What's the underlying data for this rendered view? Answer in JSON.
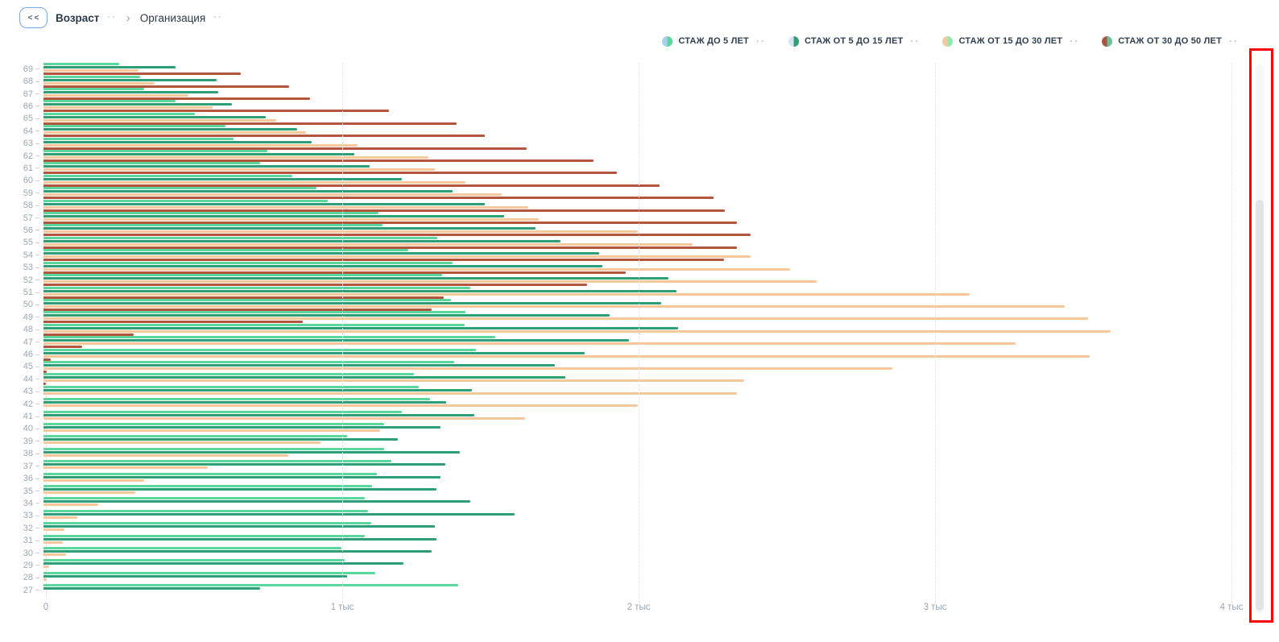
{
  "header": {
    "back_button_label": "<<",
    "breadcrumb": [
      {
        "label": "Возраст",
        "active": true
      },
      {
        "label": "Организация",
        "active": false
      }
    ],
    "dots": "··",
    "separator": "›"
  },
  "legend": {
    "items": [
      {
        "label": "СТАЖ ДО 5 ЛЕТ",
        "swatch_left": "#a9cfec",
        "swatch_right": "#5bd69c",
        "dots": "··"
      },
      {
        "label": "СТАЖ ОТ 5 ДО 15 ЛЕТ",
        "swatch_left": "#d6e5f4",
        "swatch_right": "#2e9e77",
        "dots": "··"
      },
      {
        "label": "СТАЖ ОТ 15 ДО 30 ЛЕТ",
        "swatch_left": "#f5c89c",
        "swatch_right": "#8fe9b2",
        "dots": "··"
      },
      {
        "label": "СТАЖ ОТ 30 ДО 50 ЛЕТ",
        "swatch_left": "#a8553f",
        "swatch_right": "#68c09c",
        "dots": "··"
      }
    ]
  },
  "chart_data": {
    "type": "bar",
    "orientation": "horizontal",
    "title": "",
    "xlabel": "",
    "ylabel": "Возраст",
    "xlim": [
      0,
      4000
    ],
    "grid": "vertical-dashed",
    "legend_position": "top-right",
    "x_ticks": [
      "0",
      "1 тыс",
      "2 тыс",
      "3 тыс",
      "4 тыс"
    ],
    "x_tick_values": [
      0,
      1000,
      2000,
      3000,
      4000
    ],
    "categories": [
      69,
      68,
      67,
      66,
      65,
      64,
      63,
      62,
      61,
      60,
      59,
      58,
      57,
      56,
      55,
      54,
      53,
      52,
      51,
      50,
      49,
      48,
      47,
      46,
      45,
      44,
      43,
      42,
      41,
      40,
      39,
      38,
      37,
      36,
      35,
      34,
      33,
      32,
      31,
      30,
      29,
      28,
      27
    ],
    "series": [
      {
        "name": "СТАЖ ДО 5 ЛЕТ",
        "color": "#5bd69c",
        "values": [
          255,
          325,
          340,
          445,
          510,
          615,
          640,
          755,
          730,
          840,
          920,
          960,
          1130,
          1145,
          1330,
          1230,
          1380,
          1345,
          1440,
          1375,
          1425,
          1420,
          1525,
          1460,
          1385,
          1250,
          1265,
          1305,
          1210,
          1150,
          1025,
          1150,
          1175,
          1125,
          1110,
          1085,
          1095,
          1105,
          1085,
          1005,
          1015,
          1120,
          1400
        ]
      },
      {
        "name": "СТАЖ ОТ 5 ДО 15 ЛЕТ",
        "color": "#2e9e77",
        "values": [
          445,
          585,
          590,
          635,
          750,
          855,
          905,
          1050,
          1100,
          1210,
          1380,
          1490,
          1555,
          1660,
          1745,
          1875,
          1885,
          2110,
          2135,
          2085,
          1910,
          2140,
          1975,
          1825,
          1725,
          1760,
          1445,
          1360,
          1455,
          1340,
          1195,
          1405,
          1355,
          1340,
          1325,
          1440,
          1590,
          1320,
          1325,
          1310,
          1215,
          1025,
          730
        ]
      },
      {
        "name": "СТАЖ ОТ 15 ДО 30 ЛЕТ",
        "color": "#f5c89c",
        "values": [
          320,
          375,
          490,
          570,
          785,
          885,
          1060,
          1300,
          1320,
          1425,
          1545,
          1635,
          1670,
          2005,
          2190,
          2385,
          2520,
          2610,
          3125,
          3445,
          3525,
          3600,
          3280,
          3530,
          2865,
          2365,
          2340,
          2005,
          1625,
          1135,
          935,
          825,
          555,
          340,
          310,
          185,
          115,
          70,
          65,
          75,
          20,
          10,
          0
        ]
      },
      {
        "name": "СТАЖ ОТ 30 ДО 50 ЛЕТ",
        "color": "#b3543c",
        "values": [
          665,
          830,
          900,
          1165,
          1395,
          1490,
          1630,
          1855,
          1935,
          2080,
          2260,
          2300,
          2340,
          2385,
          2340,
          2295,
          1965,
          1835,
          1350,
          1310,
          875,
          305,
          130,
          25,
          12,
          8,
          0,
          0,
          0,
          0,
          0,
          0,
          0,
          0,
          0,
          0,
          0,
          0,
          0,
          0,
          0,
          0,
          0
        ]
      }
    ]
  },
  "annotation": {
    "type": "highlight-rectangle",
    "color": "#ff0000",
    "target": "vertical-scrollbar"
  }
}
